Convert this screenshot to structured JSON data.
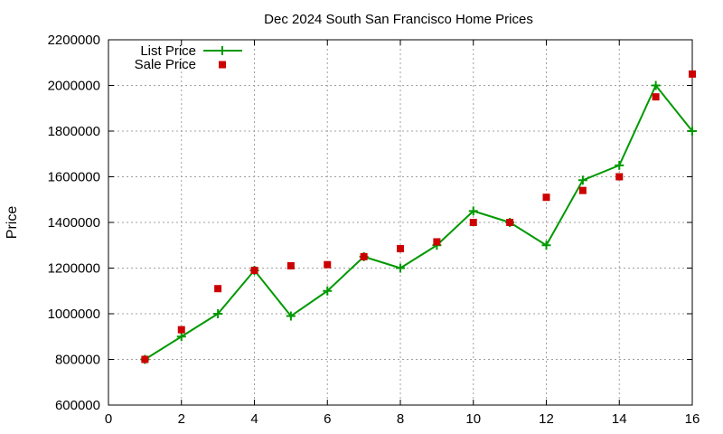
{
  "chart_data": {
    "type": "line",
    "title": "Dec 2024 South San Francisco Home Prices",
    "xlabel": "",
    "ylabel": "Price",
    "xlim": [
      0,
      16
    ],
    "ylim": [
      600000,
      2200000
    ],
    "x_ticks": [
      "0",
      "2",
      "4",
      "6",
      "8",
      "10",
      "12",
      "14",
      "16"
    ],
    "y_ticks": [
      "600000",
      "800000",
      "1000000",
      "1200000",
      "1400000",
      "1600000",
      "1800000",
      "2000000",
      "2200000"
    ],
    "grid": true,
    "legend_position": "top-left",
    "series": [
      {
        "name": "List Price",
        "style": "line-with-plus-markers",
        "color": "#009900",
        "x": [
          1,
          2,
          3,
          4,
          5,
          6,
          7,
          8,
          9,
          10,
          11,
          12,
          13,
          14,
          15,
          16
        ],
        "values": [
          800000,
          900000,
          1000000,
          1190000,
          990000,
          1100000,
          1250000,
          1200000,
          1300000,
          1450000,
          1400000,
          1300000,
          1585000,
          1650000,
          2000000,
          1800000
        ]
      },
      {
        "name": "Sale Price",
        "style": "square-markers",
        "color": "#cc0000",
        "x": [
          1,
          2,
          3,
          4,
          5,
          6,
          7,
          8,
          9,
          10,
          11,
          12,
          13,
          14,
          15,
          16
        ],
        "values": [
          800000,
          930000,
          1110000,
          1190000,
          1210000,
          1215000,
          1250000,
          1285000,
          1315000,
          1400000,
          1400000,
          1510000,
          1540000,
          1600000,
          1950000,
          2050000
        ]
      }
    ]
  }
}
